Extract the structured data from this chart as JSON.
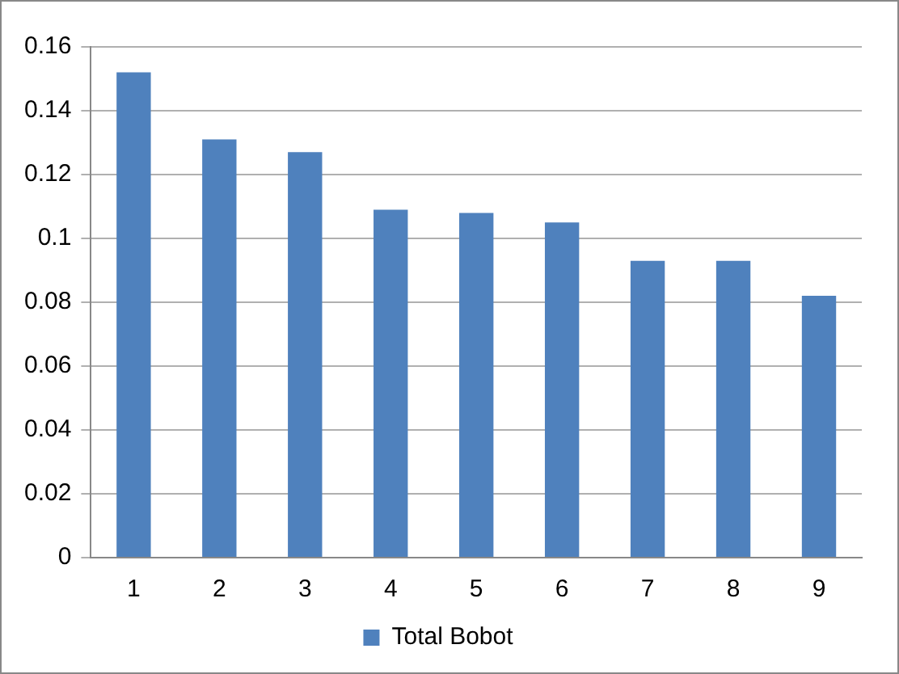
{
  "chart_data": {
    "type": "bar",
    "categories": [
      "1",
      "2",
      "3",
      "4",
      "5",
      "6",
      "7",
      "8",
      "9"
    ],
    "series": [
      {
        "name": "Total Bobot",
        "color": "#4f81bd",
        "values": [
          0.152,
          0.131,
          0.127,
          0.109,
          0.108,
          0.105,
          0.093,
          0.093,
          0.082
        ]
      }
    ],
    "ylim": [
      0,
      0.16
    ],
    "yticks": [
      0,
      0.02,
      0.04,
      0.06,
      0.08,
      {
        "value": 0.1,
        "label": "0.1"
      },
      0.12,
      0.14,
      0.16
    ],
    "grid": "y",
    "legend": "bottom"
  }
}
